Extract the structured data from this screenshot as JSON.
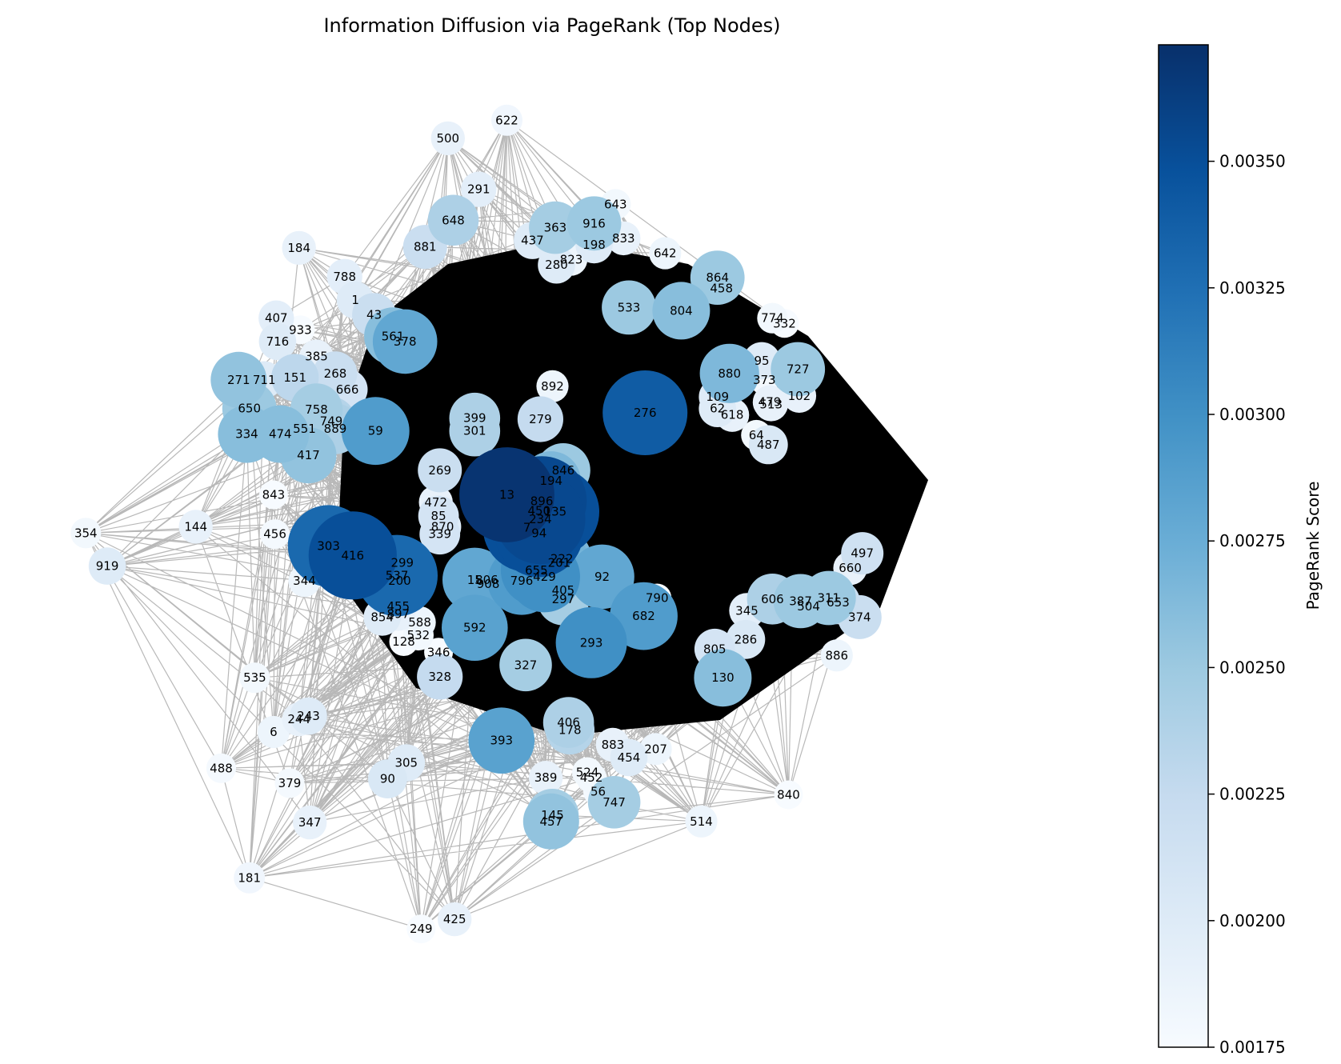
{
  "chart_data": {
    "type": "network",
    "title": "Information Diffusion via PageRank (Top Nodes)",
    "colorbar": {
      "label": "PageRank Score",
      "colormap": "Blues",
      "range": [
        0.00175,
        0.00373
      ],
      "ticks": [
        "0.00175",
        "0.00200",
        "0.00225",
        "0.00250",
        "0.00275",
        "0.00300",
        "0.00325",
        "0.00350"
      ]
    },
    "edge_color": "#000000",
    "nodes": [
      {
        "id": "622",
        "x": 0.378,
        "y": 0.113,
        "score": 0.00182
      },
      {
        "id": "500",
        "x": 0.334,
        "y": 0.13,
        "score": 0.0019
      },
      {
        "id": "291",
        "x": 0.357,
        "y": 0.178,
        "score": 0.00195
      },
      {
        "id": "648",
        "x": 0.338,
        "y": 0.207,
        "score": 0.0024
      },
      {
        "id": "881",
        "x": 0.317,
        "y": 0.232,
        "score": 0.0022
      },
      {
        "id": "643",
        "x": 0.459,
        "y": 0.192,
        "score": 0.0018
      },
      {
        "id": "363",
        "x": 0.414,
        "y": 0.214,
        "score": 0.00245
      },
      {
        "id": "916",
        "x": 0.443,
        "y": 0.21,
        "score": 0.0025
      },
      {
        "id": "437",
        "x": 0.397,
        "y": 0.226,
        "score": 0.002
      },
      {
        "id": "198",
        "x": 0.443,
        "y": 0.23,
        "score": 0.002
      },
      {
        "id": "833",
        "x": 0.465,
        "y": 0.224,
        "score": 0.0019
      },
      {
        "id": "823",
        "x": 0.426,
        "y": 0.244,
        "score": 0.00185
      },
      {
        "id": "280",
        "x": 0.415,
        "y": 0.249,
        "score": 0.002
      },
      {
        "id": "642",
        "x": 0.496,
        "y": 0.238,
        "score": 0.00185
      },
      {
        "id": "184",
        "x": 0.223,
        "y": 0.233,
        "score": 0.0019
      },
      {
        "id": "788",
        "x": 0.257,
        "y": 0.26,
        "score": 0.00195
      },
      {
        "id": "1",
        "x": 0.265,
        "y": 0.282,
        "score": 0.002
      },
      {
        "id": "43",
        "x": 0.279,
        "y": 0.296,
        "score": 0.0022
      },
      {
        "id": "561",
        "x": 0.293,
        "y": 0.316,
        "score": 0.0026
      },
      {
        "id": "378",
        "x": 0.302,
        "y": 0.321,
        "score": 0.0028
      },
      {
        "id": "407",
        "x": 0.206,
        "y": 0.299,
        "score": 0.00195
      },
      {
        "id": "933",
        "x": 0.224,
        "y": 0.31,
        "score": 0.00175
      },
      {
        "id": "716",
        "x": 0.207,
        "y": 0.321,
        "score": 0.002
      },
      {
        "id": "385",
        "x": 0.236,
        "y": 0.335,
        "score": 0.0019
      },
      {
        "id": "268",
        "x": 0.25,
        "y": 0.351,
        "score": 0.0022
      },
      {
        "id": "666",
        "x": 0.259,
        "y": 0.366,
        "score": 0.0021
      },
      {
        "id": "271",
        "x": 0.178,
        "y": 0.357,
        "score": 0.00255
      },
      {
        "id": "711",
        "x": 0.197,
        "y": 0.357,
        "score": 0.002
      },
      {
        "id": "151",
        "x": 0.22,
        "y": 0.355,
        "score": 0.0023
      },
      {
        "id": "650",
        "x": 0.186,
        "y": 0.384,
        "score": 0.0025
      },
      {
        "id": "758",
        "x": 0.236,
        "y": 0.385,
        "score": 0.00245
      },
      {
        "id": "749",
        "x": 0.247,
        "y": 0.396,
        "score": 0.00235
      },
      {
        "id": "889",
        "x": 0.25,
        "y": 0.403,
        "score": 0.0024
      },
      {
        "id": "551",
        "x": 0.227,
        "y": 0.403,
        "score": 0.00245
      },
      {
        "id": "334",
        "x": 0.184,
        "y": 0.408,
        "score": 0.0026
      },
      {
        "id": "474",
        "x": 0.209,
        "y": 0.408,
        "score": 0.0026
      },
      {
        "id": "59",
        "x": 0.28,
        "y": 0.405,
        "score": 0.0029
      },
      {
        "id": "417",
        "x": 0.23,
        "y": 0.428,
        "score": 0.00255
      },
      {
        "id": "843",
        "x": 0.204,
        "y": 0.465,
        "score": 0.00175
      },
      {
        "id": "144",
        "x": 0.146,
        "y": 0.495,
        "score": 0.0019
      },
      {
        "id": "354",
        "x": 0.064,
        "y": 0.501,
        "score": 0.0018
      },
      {
        "id": "456",
        "x": 0.205,
        "y": 0.502,
        "score": 0.00178
      },
      {
        "id": "919",
        "x": 0.08,
        "y": 0.532,
        "score": 0.002
      },
      {
        "id": "303",
        "x": 0.245,
        "y": 0.513,
        "score": 0.0033
      },
      {
        "id": "416",
        "x": 0.263,
        "y": 0.522,
        "score": 0.0035
      },
      {
        "id": "344",
        "x": 0.227,
        "y": 0.546,
        "score": 0.00185
      },
      {
        "id": "299",
        "x": 0.3,
        "y": 0.529,
        "score": 0.00205
      },
      {
        "id": "537",
        "x": 0.296,
        "y": 0.541,
        "score": 0.0033
      },
      {
        "id": "200",
        "x": 0.298,
        "y": 0.546,
        "score": 0.002
      },
      {
        "id": "455",
        "x": 0.297,
        "y": 0.57,
        "score": 0.0019
      },
      {
        "id": "897",
        "x": 0.297,
        "y": 0.577,
        "score": 0.0019
      },
      {
        "id": "854",
        "x": 0.285,
        "y": 0.58,
        "score": 0.002
      },
      {
        "id": "588",
        "x": 0.313,
        "y": 0.585,
        "score": 0.00185
      },
      {
        "id": "532",
        "x": 0.312,
        "y": 0.597,
        "score": 0.0018
      },
      {
        "id": "128",
        "x": 0.301,
        "y": 0.603,
        "score": 0.00175
      },
      {
        "id": "346",
        "x": 0.327,
        "y": 0.613,
        "score": 0.00175
      },
      {
        "id": "535",
        "x": 0.19,
        "y": 0.637,
        "score": 0.0018
      },
      {
        "id": "243",
        "x": 0.23,
        "y": 0.673,
        "score": 0.002
      },
      {
        "id": "244",
        "x": 0.223,
        "y": 0.676,
        "score": 0.0019
      },
      {
        "id": "6",
        "x": 0.204,
        "y": 0.688,
        "score": 0.00185
      },
      {
        "id": "488",
        "x": 0.165,
        "y": 0.722,
        "score": 0.00178
      },
      {
        "id": "379",
        "x": 0.216,
        "y": 0.736,
        "score": 0.00178
      },
      {
        "id": "305",
        "x": 0.303,
        "y": 0.717,
        "score": 0.002
      },
      {
        "id": "90",
        "x": 0.289,
        "y": 0.732,
        "score": 0.00205
      },
      {
        "id": "347",
        "x": 0.231,
        "y": 0.773,
        "score": 0.0019
      },
      {
        "id": "181",
        "x": 0.186,
        "y": 0.825,
        "score": 0.00182
      },
      {
        "id": "249",
        "x": 0.314,
        "y": 0.873,
        "score": 0.00175
      },
      {
        "id": "425",
        "x": 0.339,
        "y": 0.864,
        "score": 0.0019
      },
      {
        "id": "399",
        "x": 0.354,
        "y": 0.393,
        "score": 0.0024
      },
      {
        "id": "301",
        "x": 0.354,
        "y": 0.405,
        "score": 0.0024
      },
      {
        "id": "279",
        "x": 0.403,
        "y": 0.394,
        "score": 0.00225
      },
      {
        "id": "892",
        "x": 0.412,
        "y": 0.363,
        "score": 0.00185
      },
      {
        "id": "269",
        "x": 0.328,
        "y": 0.442,
        "score": 0.0022
      },
      {
        "id": "13",
        "x": 0.378,
        "y": 0.465,
        "score": 0.0037
      },
      {
        "id": "846",
        "x": 0.42,
        "y": 0.442,
        "score": 0.0025
      },
      {
        "id": "194",
        "x": 0.411,
        "y": 0.452,
        "score": 0.00265
      },
      {
        "id": "896",
        "x": 0.404,
        "y": 0.471,
        "score": 0.00355
      },
      {
        "id": "450",
        "x": 0.402,
        "y": 0.48,
        "score": 0.0035
      },
      {
        "id": "135",
        "x": 0.414,
        "y": 0.481,
        "score": 0.0035
      },
      {
        "id": "234",
        "x": 0.403,
        "y": 0.488,
        "score": 0.00355
      },
      {
        "id": "7",
        "x": 0.393,
        "y": 0.496,
        "score": 0.0035
      },
      {
        "id": "94",
        "x": 0.402,
        "y": 0.501,
        "score": 0.0035
      },
      {
        "id": "472",
        "x": 0.325,
        "y": 0.472,
        "score": 0.0019
      },
      {
        "id": "85",
        "x": 0.327,
        "y": 0.485,
        "score": 0.0021
      },
      {
        "id": "870",
        "x": 0.33,
        "y": 0.495,
        "score": 0.002
      },
      {
        "id": "339",
        "x": 0.328,
        "y": 0.502,
        "score": 0.0021
      },
      {
        "id": "276",
        "x": 0.481,
        "y": 0.388,
        "score": 0.0034
      },
      {
        "id": "222",
        "x": 0.419,
        "y": 0.525,
        "score": 0.00265
      },
      {
        "id": "201",
        "x": 0.417,
        "y": 0.529,
        "score": 0.0027
      },
      {
        "id": "92",
        "x": 0.449,
        "y": 0.542,
        "score": 0.0028
      },
      {
        "id": "655",
        "x": 0.4,
        "y": 0.536,
        "score": 0.003
      },
      {
        "id": "429",
        "x": 0.406,
        "y": 0.542,
        "score": 0.003
      },
      {
        "id": "796",
        "x": 0.389,
        "y": 0.546,
        "score": 0.0029
      },
      {
        "id": "15",
        "x": 0.354,
        "y": 0.545,
        "score": 0.0028
      },
      {
        "id": "806",
        "x": 0.363,
        "y": 0.545,
        "score": 0.00175
      },
      {
        "id": "908",
        "x": 0.364,
        "y": 0.549,
        "score": 0.00175
      },
      {
        "id": "405",
        "x": 0.42,
        "y": 0.555,
        "score": 0.00245
      },
      {
        "id": "297",
        "x": 0.42,
        "y": 0.563,
        "score": 0.00245
      },
      {
        "id": "592",
        "x": 0.354,
        "y": 0.59,
        "score": 0.00285
      },
      {
        "id": "327",
        "x": 0.392,
        "y": 0.625,
        "score": 0.00245
      },
      {
        "id": "293",
        "x": 0.441,
        "y": 0.604,
        "score": 0.003
      },
      {
        "id": "328",
        "x": 0.328,
        "y": 0.636,
        "score": 0.00225
      },
      {
        "id": "682",
        "x": 0.48,
        "y": 0.579,
        "score": 0.0029
      },
      {
        "id": "790",
        "x": 0.49,
        "y": 0.562,
        "score": 0.00175
      },
      {
        "id": "406",
        "x": 0.424,
        "y": 0.679,
        "score": 0.0024
      },
      {
        "id": "178",
        "x": 0.425,
        "y": 0.686,
        "score": 0.00235
      },
      {
        "id": "393",
        "x": 0.374,
        "y": 0.696,
        "score": 0.00285
      },
      {
        "id": "883",
        "x": 0.457,
        "y": 0.7,
        "score": 0.0019
      },
      {
        "id": "454",
        "x": 0.469,
        "y": 0.712,
        "score": 0.002
      },
      {
        "id": "207",
        "x": 0.489,
        "y": 0.704,
        "score": 0.00185
      },
      {
        "id": "389",
        "x": 0.407,
        "y": 0.731,
        "score": 0.0019
      },
      {
        "id": "524",
        "x": 0.438,
        "y": 0.726,
        "score": 0.0018
      },
      {
        "id": "452",
        "x": 0.441,
        "y": 0.731,
        "score": 0.0018
      },
      {
        "id": "56",
        "x": 0.446,
        "y": 0.744,
        "score": 0.00178
      },
      {
        "id": "747",
        "x": 0.458,
        "y": 0.754,
        "score": 0.00245
      },
      {
        "id": "145",
        "x": 0.412,
        "y": 0.766,
        "score": 0.00245
      },
      {
        "id": "457",
        "x": 0.411,
        "y": 0.772,
        "score": 0.00255
      },
      {
        "id": "514",
        "x": 0.523,
        "y": 0.772,
        "score": 0.00185
      },
      {
        "id": "840",
        "x": 0.588,
        "y": 0.747,
        "score": 0.00175
      },
      {
        "id": "533",
        "x": 0.469,
        "y": 0.289,
        "score": 0.0025
      },
      {
        "id": "804",
        "x": 0.508,
        "y": 0.292,
        "score": 0.0026
      },
      {
        "id": "864",
        "x": 0.535,
        "y": 0.261,
        "score": 0.0025
      },
      {
        "id": "458",
        "x": 0.538,
        "y": 0.271,
        "score": 0.00175
      },
      {
        "id": "774",
        "x": 0.576,
        "y": 0.299,
        "score": 0.0018
      },
      {
        "id": "332",
        "x": 0.585,
        "y": 0.304,
        "score": 0.00175
      },
      {
        "id": "880",
        "x": 0.544,
        "y": 0.351,
        "score": 0.00265
      },
      {
        "id": "95",
        "x": 0.568,
        "y": 0.339,
        "score": 0.002
      },
      {
        "id": "727",
        "x": 0.595,
        "y": 0.347,
        "score": 0.0025
      },
      {
        "id": "373",
        "x": 0.57,
        "y": 0.357,
        "score": 0.00178
      },
      {
        "id": "109",
        "x": 0.535,
        "y": 0.373,
        "score": 0.002
      },
      {
        "id": "102",
        "x": 0.596,
        "y": 0.372,
        "score": 0.0019
      },
      {
        "id": "479",
        "x": 0.574,
        "y": 0.378,
        "score": 0.0019
      },
      {
        "id": "513",
        "x": 0.575,
        "y": 0.38,
        "score": 0.0019
      },
      {
        "id": "62",
        "x": 0.535,
        "y": 0.384,
        "score": 0.002
      },
      {
        "id": "618",
        "x": 0.546,
        "y": 0.39,
        "score": 0.0019
      },
      {
        "id": "64",
        "x": 0.564,
        "y": 0.409,
        "score": 0.0018
      },
      {
        "id": "487",
        "x": 0.573,
        "y": 0.418,
        "score": 0.00205
      },
      {
        "id": "497",
        "x": 0.643,
        "y": 0.52,
        "score": 0.00215
      },
      {
        "id": "660",
        "x": 0.634,
        "y": 0.534,
        "score": 0.0019
      },
      {
        "id": "606",
        "x": 0.576,
        "y": 0.563,
        "score": 0.0024
      },
      {
        "id": "387",
        "x": 0.597,
        "y": 0.565,
        "score": 0.0025
      },
      {
        "id": "311",
        "x": 0.618,
        "y": 0.562,
        "score": 0.0025
      },
      {
        "id": "504",
        "x": 0.603,
        "y": 0.57,
        "score": 0.00175
      },
      {
        "id": "653",
        "x": 0.625,
        "y": 0.566,
        "score": 0.0022
      },
      {
        "id": "374",
        "x": 0.641,
        "y": 0.58,
        "score": 0.0022
      },
      {
        "id": "345",
        "x": 0.557,
        "y": 0.574,
        "score": 0.00195
      },
      {
        "id": "286",
        "x": 0.556,
        "y": 0.601,
        "score": 0.00205
      },
      {
        "id": "805",
        "x": 0.533,
        "y": 0.61,
        "score": 0.0021
      },
      {
        "id": "130",
        "x": 0.539,
        "y": 0.637,
        "score": 0.0026
      },
      {
        "id": "886",
        "x": 0.624,
        "y": 0.616,
        "score": 0.00185
      }
    ]
  }
}
